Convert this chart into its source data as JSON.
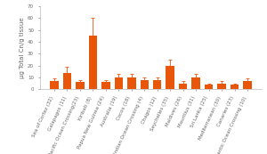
{
  "categories": [
    "Sea of Cortez (32)",
    "Galapagos (11)",
    "Pacific Ocean Crossing(23)",
    "Kiribati (8)",
    "Papua New Guinea (24)",
    "Australia (19)",
    "Cocos (18)",
    "Indian Ocean Crossing (4)",
    "Chagos (12)",
    "Seychelles (35)",
    "Maldives (26)",
    "Mauritius (31)",
    "Sri Lanka (25)",
    "Mediterranean (30)",
    "Canaries (23)",
    "Atlantic Ocean Crossing (10)"
  ],
  "values": [
    7,
    14,
    6,
    45,
    6,
    10,
    10,
    8,
    8,
    20,
    5,
    10,
    4,
    5,
    4,
    7
  ],
  "errors": [
    2,
    5,
    2,
    15,
    2,
    3,
    3,
    2,
    2,
    5,
    2,
    3,
    1,
    2,
    1,
    2
  ],
  "bar_color": "#E8560A",
  "ylabel": "µg Total Cn/g tissue",
  "ylim": [
    0,
    70
  ],
  "yticks": [
    0,
    10,
    20,
    30,
    40,
    50,
    60,
    70
  ],
  "background_color": "#ffffff",
  "tick_fontsize": 4,
  "ylabel_fontsize": 5,
  "bar_width": 0.65,
  "error_capsize": 1.5,
  "error_linewidth": 0.6,
  "error_color": "#E8560A"
}
